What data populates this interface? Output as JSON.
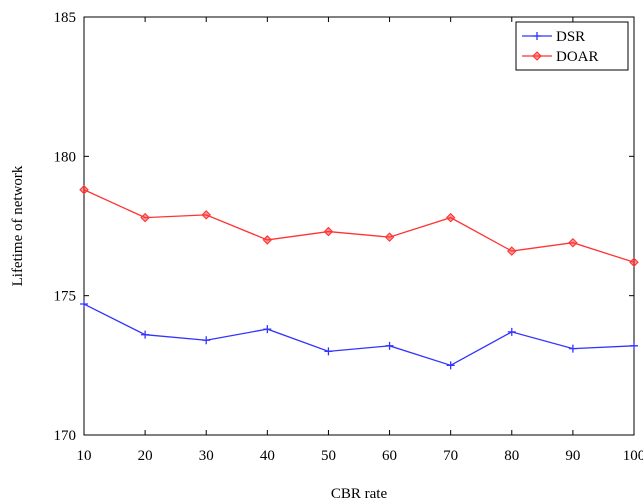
{
  "chart_data": {
    "type": "line",
    "title": "",
    "xlabel": "CBR rate",
    "ylabel": "Lifetime of network",
    "xlim": [
      10,
      100
    ],
    "ylim": [
      170,
      185
    ],
    "xticks": [
      10,
      20,
      30,
      40,
      50,
      60,
      70,
      80,
      90,
      100
    ],
    "yticks": [
      170,
      175,
      180,
      185
    ],
    "grid": false,
    "legend": "top-right",
    "x": [
      10,
      20,
      30,
      40,
      50,
      60,
      70,
      80,
      90,
      100
    ],
    "series": [
      {
        "name": "DSR",
        "color": "#3333ff",
        "marker": "plus",
        "values": [
          174.7,
          173.6,
          173.4,
          173.8,
          173.0,
          173.2,
          172.5,
          173.7,
          173.1,
          173.2
        ]
      },
      {
        "name": "DOAR",
        "color": "#ff3333",
        "marker": "diamond",
        "values": [
          178.8,
          177.8,
          177.9,
          177.0,
          177.3,
          177.1,
          177.8,
          176.6,
          176.9,
          176.2
        ]
      }
    ]
  }
}
